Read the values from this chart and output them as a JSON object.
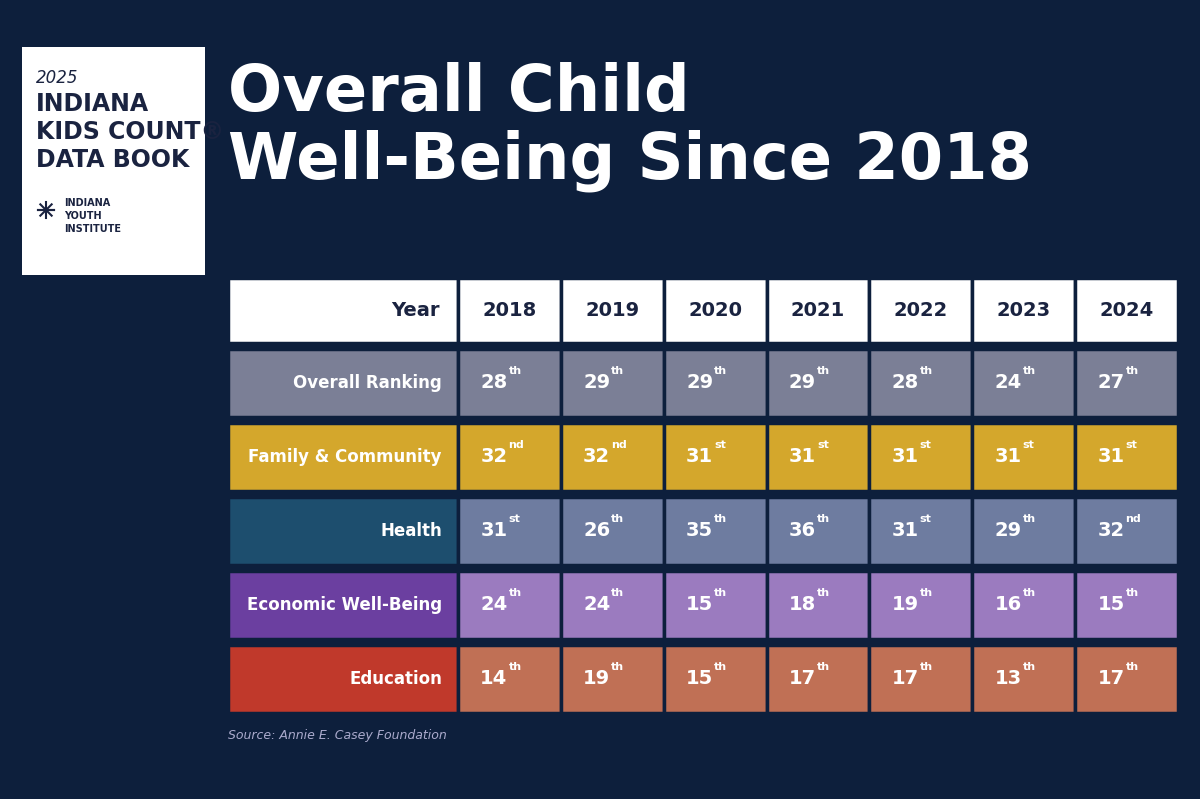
{
  "bg_color": "#0d1f3c",
  "title_text_line1": "Overall Child",
  "title_text_line2": "Well-Being Since 2018",
  "title_color": "#ffffff",
  "sidebar_bg": "#ffffff",
  "sidebar_year": "2025",
  "sidebar_line1": "INDIANA",
  "sidebar_line2": "KIDS COUNT®",
  "sidebar_line3": "DATA BOOK",
  "source_text": "Source: Annie E. Casey Foundation",
  "years": [
    "2018",
    "2019",
    "2020",
    "2021",
    "2022",
    "2023",
    "2024"
  ],
  "header_text_color": "#1a2340",
  "rows": [
    {
      "label": "Overall Ranking",
      "label_bg": "#7b7f96",
      "data_bg": "#7b7f96",
      "values": [
        "28",
        "29",
        "29",
        "29",
        "28",
        "24",
        "27"
      ],
      "suffixes": [
        "th",
        "th",
        "th",
        "th",
        "th",
        "th",
        "th"
      ]
    },
    {
      "label": "Family & Community",
      "label_bg": "#d4a72c",
      "data_bg": "#d4a72c",
      "values": [
        "32",
        "32",
        "31",
        "31",
        "31",
        "31",
        "31"
      ],
      "suffixes": [
        "nd",
        "nd",
        "st",
        "st",
        "st",
        "st",
        "st"
      ]
    },
    {
      "label": "Health",
      "label_bg": "#1d4e6e",
      "data_bg": "#6e7ca0",
      "values": [
        "31",
        "26",
        "35",
        "36",
        "31",
        "29",
        "32"
      ],
      "suffixes": [
        "st",
        "th",
        "th",
        "th",
        "st",
        "th",
        "nd"
      ]
    },
    {
      "label": "Economic Well-Being",
      "label_bg": "#6b3fa0",
      "data_bg": "#9b7bbf",
      "values": [
        "24",
        "24",
        "15",
        "18",
        "19",
        "16",
        "15"
      ],
      "suffixes": [
        "th",
        "th",
        "th",
        "th",
        "th",
        "th",
        "th"
      ]
    },
    {
      "label": "Education",
      "label_bg": "#c0392b",
      "data_bg": "#c07055",
      "values": [
        "14",
        "19",
        "15",
        "17",
        "17",
        "13",
        "17"
      ],
      "suffixes": [
        "th",
        "th",
        "th",
        "th",
        "th",
        "th",
        "th"
      ]
    }
  ]
}
